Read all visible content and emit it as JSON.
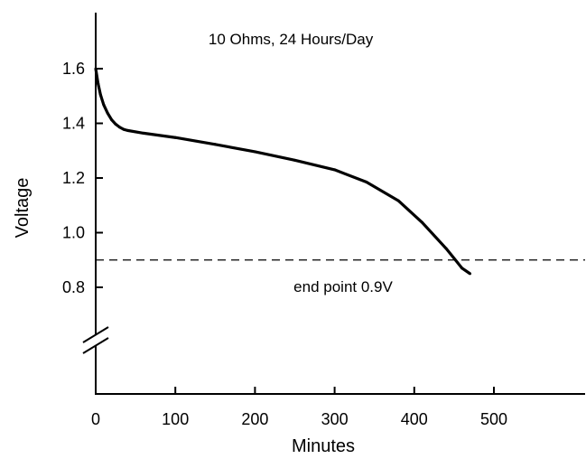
{
  "chart_data": {
    "type": "line",
    "title": "",
    "xlabel": "Minutes",
    "ylabel": "Voltage",
    "xlim": [
      0,
      580
    ],
    "ylim": [
      0.8,
      1.6
    ],
    "xticks": [
      0,
      100,
      200,
      300,
      400,
      500
    ],
    "yticks": [
      0.8,
      1.0,
      1.2,
      1.4,
      1.6
    ],
    "xtick_labels": [
      "0",
      "100",
      "200",
      "300",
      "400",
      "500"
    ],
    "ytick_labels": [
      "0.8",
      "1.0",
      "1.2",
      "1.4",
      "1.6"
    ],
    "grid": false,
    "y_axis_break": true,
    "series": [
      {
        "x": [
          0,
          3,
          6,
          10,
          15,
          20,
          25,
          30,
          35,
          40,
          60,
          100,
          150,
          200,
          250,
          300,
          340,
          380,
          410,
          440,
          460,
          470
        ],
        "y": [
          1.6,
          1.545,
          1.505,
          1.468,
          1.437,
          1.413,
          1.397,
          1.386,
          1.378,
          1.374,
          1.364,
          1.348,
          1.323,
          1.296,
          1.265,
          1.23,
          1.185,
          1.117,
          1.037,
          0.942,
          0.87,
          0.85
        ]
      }
    ],
    "reference_line": {
      "y": 0.9,
      "style": "dashed",
      "label": "end point 0.9V"
    },
    "annotations": [
      {
        "text": "10 Ohms, 24 Hours/Day",
        "x": 245,
        "y": 1.69
      }
    ]
  }
}
